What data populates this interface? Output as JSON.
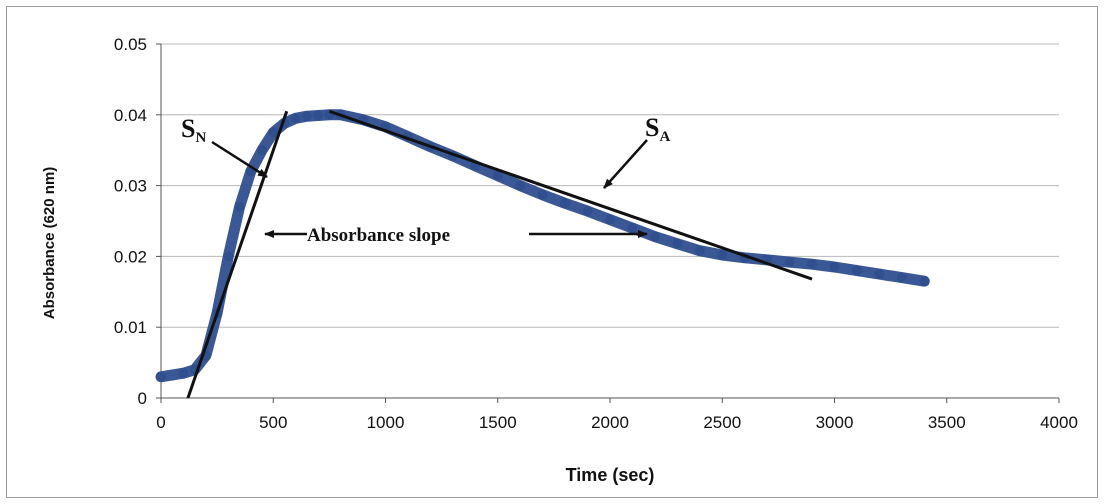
{
  "chart_data": {
    "type": "scatter",
    "title": "",
    "xlabel": "Time (sec)",
    "ylabel": "Absorbance (620 nm)",
    "xlim": [
      0,
      4000
    ],
    "ylim": [
      0,
      0.05
    ],
    "xticks": [
      0,
      500,
      1000,
      1500,
      2000,
      2500,
      3000,
      3500,
      4000
    ],
    "yticks": [
      0,
      0.01,
      0.02,
      0.03,
      0.04,
      0.05
    ],
    "xtick_labels": [
      "0",
      "500",
      "1000",
      "1500",
      "2000",
      "2500",
      "3000",
      "3500",
      "4000"
    ],
    "ytick_labels": [
      "0",
      "0.01",
      "0.02",
      "0.03",
      "0.04",
      "0.05"
    ],
    "grid": "horizontal",
    "legend": "none",
    "marker_color": "#2f4f8f",
    "series": [
      {
        "x": [
          0,
          100,
          150,
          200,
          250,
          300,
          350,
          400,
          450,
          500,
          550,
          600,
          650,
          700,
          750,
          800,
          900,
          1000,
          1100,
          1200,
          1300,
          1400,
          1500,
          1600,
          1700,
          1800,
          1900,
          2000,
          2100,
          2200,
          2300,
          2400,
          2500,
          2600,
          2700,
          2800,
          2900,
          3000,
          3100,
          3200,
          3300,
          3400
        ],
        "y": [
          0.003,
          0.0035,
          0.004,
          0.006,
          0.012,
          0.02,
          0.027,
          0.032,
          0.035,
          0.0375,
          0.0388,
          0.0395,
          0.0398,
          0.0399,
          0.04,
          0.04,
          0.0393,
          0.0383,
          0.0369,
          0.0355,
          0.0342,
          0.0328,
          0.0314,
          0.03,
          0.0287,
          0.0275,
          0.0264,
          0.0252,
          0.024,
          0.0228,
          0.0218,
          0.0208,
          0.0202,
          0.0198,
          0.0195,
          0.0192,
          0.0189,
          0.0185,
          0.018,
          0.0175,
          0.017,
          0.0165
        ]
      }
    ],
    "fit_lines": [
      {
        "x": [
          120,
          560
        ],
        "y": [
          0,
          0.0405
        ]
      },
      {
        "x": [
          750,
          2900
        ],
        "y": [
          0.0405,
          0.0168
        ]
      }
    ],
    "annotations": {
      "sn": {
        "main": "S",
        "sub": "N"
      },
      "sa": {
        "main": "S",
        "sub": "A"
      },
      "slope": "Absorbance slope"
    }
  }
}
